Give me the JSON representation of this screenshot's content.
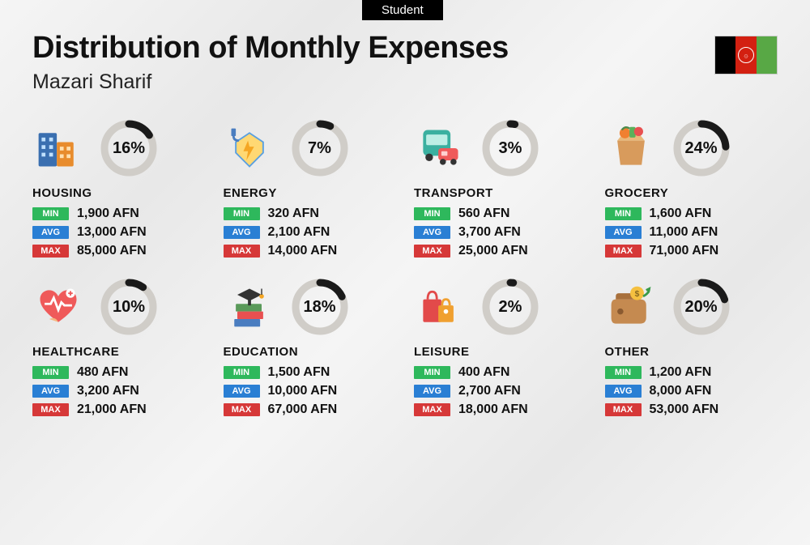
{
  "badge_text": "Student",
  "main_title": "Distribution of Monthly Expenses",
  "subtitle": "Mazari Sharif",
  "currency_suffix": "AFN",
  "stat_labels": {
    "min": "MIN",
    "avg": "AVG",
    "max": "MAX"
  },
  "colors": {
    "min_bg": "#2eb85c",
    "avg_bg": "#2a7fd4",
    "max_bg": "#d63838",
    "ring_bg": "#d0cdc8",
    "ring_fg": "#1a1a1a",
    "badge_bg": "#000000",
    "flag": {
      "black": "#000000",
      "red": "#d32011",
      "green": "#58a845"
    }
  },
  "ring": {
    "radius": 30,
    "stroke_width": 9
  },
  "categories": [
    {
      "key": "housing",
      "name": "HOUSING",
      "pct": 16,
      "min": "1,900",
      "avg": "13,000",
      "max": "85,000",
      "icon": "housing-icon"
    },
    {
      "key": "energy",
      "name": "ENERGY",
      "pct": 7,
      "min": "320",
      "avg": "2,100",
      "max": "14,000",
      "icon": "energy-icon"
    },
    {
      "key": "transport",
      "name": "TRANSPORT",
      "pct": 3,
      "min": "560",
      "avg": "3,700",
      "max": "25,000",
      "icon": "transport-icon"
    },
    {
      "key": "grocery",
      "name": "GROCERY",
      "pct": 24,
      "min": "1,600",
      "avg": "11,000",
      "max": "71,000",
      "icon": "grocery-icon"
    },
    {
      "key": "healthcare",
      "name": "HEALTHCARE",
      "pct": 10,
      "min": "480",
      "avg": "3,200",
      "max": "21,000",
      "icon": "healthcare-icon"
    },
    {
      "key": "education",
      "name": "EDUCATION",
      "pct": 18,
      "min": "1,500",
      "avg": "10,000",
      "max": "67,000",
      "icon": "education-icon"
    },
    {
      "key": "leisure",
      "name": "LEISURE",
      "pct": 2,
      "min": "400",
      "avg": "2,700",
      "max": "18,000",
      "icon": "leisure-icon"
    },
    {
      "key": "other",
      "name": "OTHER",
      "pct": 20,
      "min": "1,200",
      "avg": "8,000",
      "max": "53,000",
      "icon": "other-icon"
    }
  ]
}
